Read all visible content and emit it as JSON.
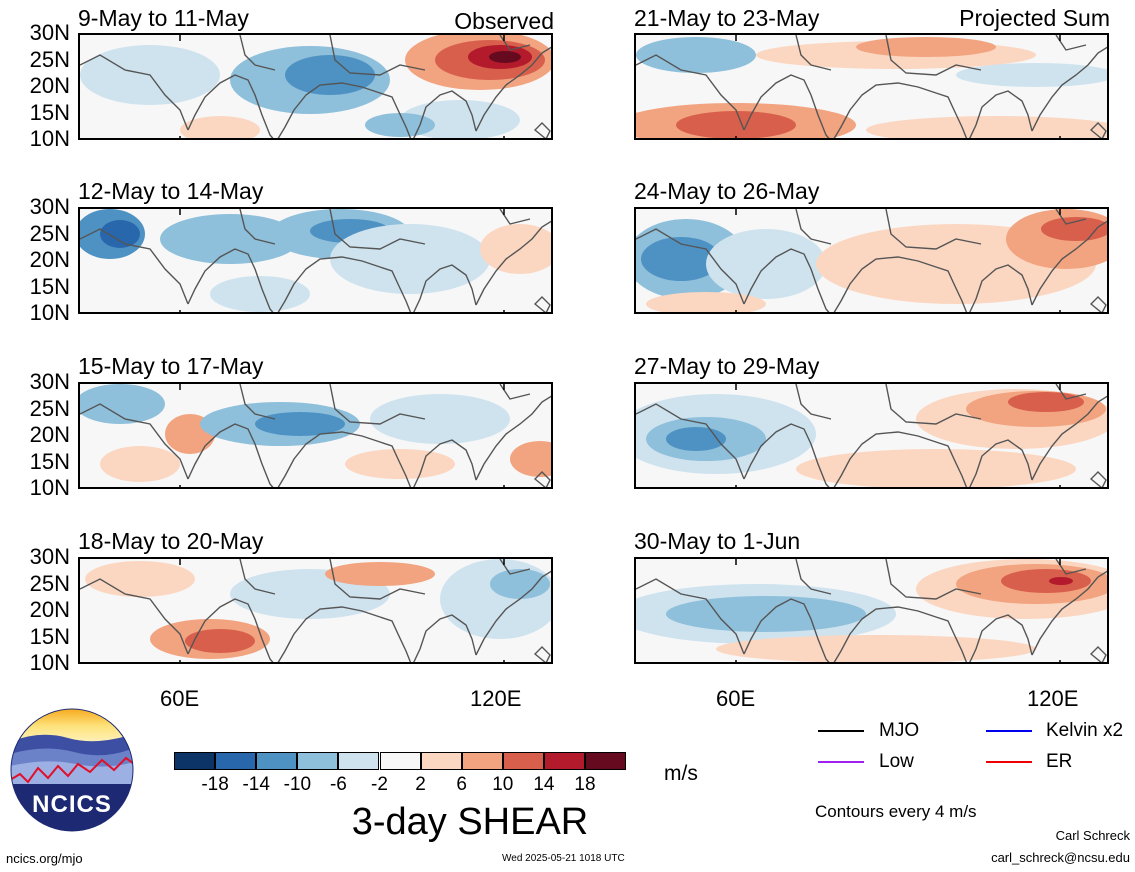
{
  "colors": {
    "n18": "#0c3466",
    "n14": "#2867ac",
    "n10": "#4e92c4",
    "n6": "#8ebfdb",
    "n2": "#cfe3ef",
    "zero": "#f7f7f7",
    "p2": "#fbd7c2",
    "p6": "#f2a37f",
    "p10": "#d85f4c",
    "p14": "#b31a2b",
    "p18": "#660a1f",
    "mjo": "#000000",
    "low": "#a020f0",
    "kelvin": "#0000ee",
    "er": "#ee0000"
  },
  "left_column": {
    "tag": "Observed",
    "panels": [
      {
        "title": "9-May to 11-May"
      },
      {
        "title": "12-May to 14-May"
      },
      {
        "title": "15-May to 17-May"
      },
      {
        "title": "18-May to 20-May"
      }
    ]
  },
  "right_column": {
    "tag": "Projected Sum",
    "panels": [
      {
        "title": "21-May to 23-May"
      },
      {
        "title": "24-May to 26-May"
      },
      {
        "title": "27-May to 29-May"
      },
      {
        "title": "30-May to 1-Jun"
      }
    ]
  },
  "y_ticks": [
    "30N",
    "25N",
    "20N",
    "15N",
    "10N"
  ],
  "x_ticks": [
    "60E",
    "120E"
  ],
  "colorbar": {
    "ticks": [
      "-18",
      "-14",
      "-10",
      "-6",
      "-2",
      "2",
      "6",
      "10",
      "14",
      "18"
    ],
    "units": "m/s",
    "title": "3-day SHEAR"
  },
  "legend": {
    "items": [
      {
        "label": "MJO",
        "color_key": "mjo"
      },
      {
        "label": "Kelvin x2",
        "color_key": "kelvin"
      },
      {
        "label": "Low",
        "color_key": "low"
      },
      {
        "label": "ER",
        "color_key": "er"
      }
    ],
    "contour_note": "Contours every 4 m/s"
  },
  "logo": {
    "text": "NCICS"
  },
  "footer": {
    "url": "ncics.org/mjo",
    "timestamp": "Wed 2025-05-21 1018 UTC",
    "author": "Carl Schreck",
    "email": "carl_schreck@ncsu.edu"
  }
}
